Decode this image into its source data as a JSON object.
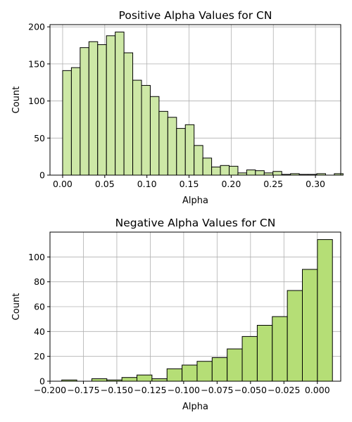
{
  "colors": {
    "positive_fill": "#cde8a6",
    "negative_fill": "#b5de76",
    "edge": "#000000",
    "grid": "#b0b0b0"
  },
  "chart_data": [
    {
      "type": "bar",
      "title": "Positive Alpha Values for CN",
      "xlabel": "Alpha",
      "ylabel": "Count",
      "grid": true,
      "xlim": [
        -0.015,
        0.33
      ],
      "ylim": [
        0,
        203
      ],
      "xticks": [
        0.0,
        0.05,
        0.1,
        0.15,
        0.2,
        0.25,
        0.3
      ],
      "xtick_labels": [
        "0.00",
        "0.05",
        "0.10",
        "0.15",
        "0.20",
        "0.25",
        "0.30"
      ],
      "yticks": [
        0,
        50,
        100,
        150,
        200
      ],
      "ytick_labels": [
        "0",
        "50",
        "100",
        "150",
        "200"
      ],
      "bin_start": 0.0,
      "bin_width": 0.0104,
      "values": [
        141,
        145,
        172,
        180,
        176,
        188,
        193,
        165,
        128,
        121,
        106,
        86,
        78,
        63,
        68,
        40,
        23,
        11,
        13,
        12,
        3,
        7,
        6,
        3,
        5,
        1,
        2,
        1,
        1,
        2,
        0,
        2
      ]
    },
    {
      "type": "bar",
      "title": "Negative Alpha Values for CN",
      "xlabel": "Alpha",
      "ylabel": "Count",
      "grid": true,
      "xlim": [
        -0.2,
        0.0175
      ],
      "ylim": [
        0,
        120
      ],
      "xticks": [
        -0.2,
        -0.175,
        -0.15,
        -0.125,
        -0.1,
        -0.075,
        -0.05,
        -0.025,
        0.0
      ],
      "xtick_labels": [
        "−0.200",
        "−0.175",
        "−0.150",
        "−0.125",
        "−0.100",
        "−0.075",
        "−0.050",
        "−0.025",
        "0.000"
      ],
      "yticks": [
        0,
        20,
        40,
        60,
        80,
        100
      ],
      "ytick_labels": [
        "0",
        "20",
        "40",
        "60",
        "80",
        "100"
      ],
      "bin_start": -0.1912,
      "bin_width": 0.01125,
      "values": [
        1,
        0,
        2,
        1,
        3,
        5,
        2,
        10,
        13,
        16,
        19,
        26,
        36,
        45,
        52,
        73,
        90,
        114
      ]
    }
  ]
}
